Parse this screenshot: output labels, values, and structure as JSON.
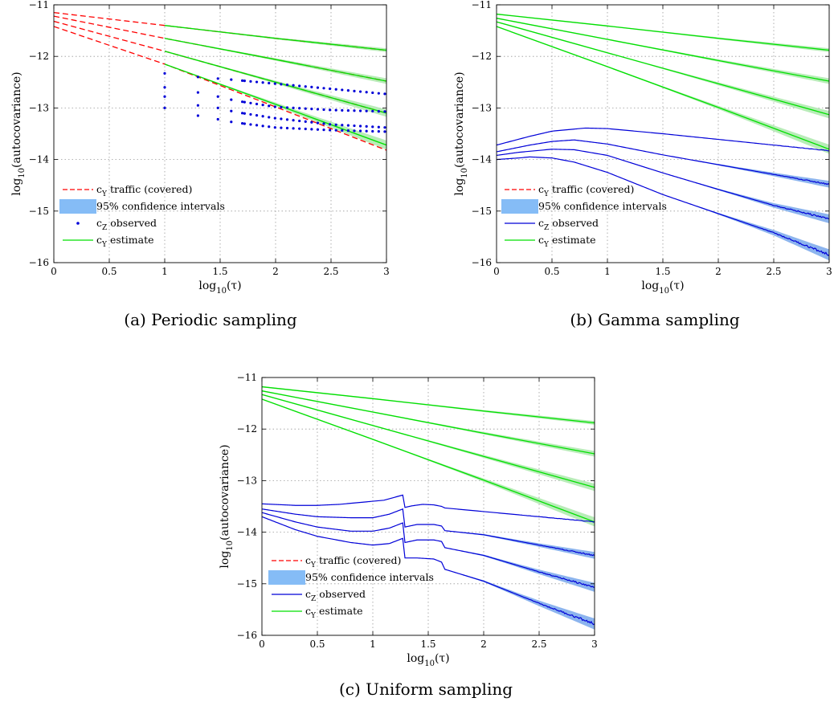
{
  "figure": {
    "legend": {
      "traffic": {
        "prefix": "c",
        "sub": "Y",
        "text": " traffic (covered)"
      },
      "ci": {
        "text": "95% confidence intervals"
      },
      "observed": {
        "prefix": "c",
        "sub": "Z",
        "text": " observed"
      },
      "estimate": {
        "prefix": "c",
        "sub": "Y",
        "text": " estimate"
      }
    },
    "colors": {
      "traffic": "#ff0000",
      "ci_fill": "#85bcf6",
      "observed": "#0000d8",
      "estimate": "#00e000",
      "estimate_band": "#b8ecb8",
      "observed_band": "#8cb4ee",
      "grid": "#9a9a9a"
    },
    "axis_labels": {
      "x": {
        "base": "log",
        "sub": "10",
        "rest": "(τ)"
      },
      "y": {
        "base": "log",
        "sub": "10",
        "rest": "(autocovariance)"
      }
    }
  },
  "chart_data": [
    {
      "id": "a",
      "type": "line",
      "caption": "(a) Periodic sampling",
      "xlim": [
        0,
        3
      ],
      "ylim": [
        -16,
        -11
      ],
      "xticks": [
        "0",
        "0.5",
        "1",
        "1.5",
        "2",
        "2.5",
        "3"
      ],
      "yticks": [
        "−11",
        "−12",
        "−13",
        "−14",
        "−15",
        "−16"
      ],
      "grid": true,
      "legend_position": "lower-left",
      "observed_style": "dots",
      "traffic": [
        {
          "x": [
            0,
            1,
            2,
            3
          ],
          "y": [
            -11.15,
            -11.4,
            -11.65,
            -11.88
          ]
        },
        {
          "x": [
            0,
            1,
            2,
            3
          ],
          "y": [
            -11.22,
            -11.65,
            -12.06,
            -12.48
          ]
        },
        {
          "x": [
            0,
            1,
            2,
            3
          ],
          "y": [
            -11.32,
            -11.9,
            -12.5,
            -13.1
          ]
        },
        {
          "x": [
            0,
            1,
            2,
            3
          ],
          "y": [
            -11.42,
            -12.15,
            -12.98,
            -13.82
          ]
        }
      ],
      "estimate": [
        {
          "x": [
            1,
            2,
            3
          ],
          "y": [
            -11.4,
            -11.65,
            -11.88
          ]
        },
        {
          "x": [
            1,
            2,
            3
          ],
          "y": [
            -11.65,
            -12.06,
            -12.48
          ]
        },
        {
          "x": [
            1,
            2,
            3
          ],
          "y": [
            -11.9,
            -12.5,
            -13.1
          ]
        },
        {
          "x": [
            1,
            2,
            3
          ],
          "y": [
            -12.15,
            -12.93,
            -13.72
          ]
        }
      ],
      "observed": [
        {
          "x": [
            1,
            1.3,
            1.48,
            1.6,
            1.7,
            2,
            2.5,
            3
          ],
          "y": [
            -12.33,
            -12.4,
            -12.43,
            -12.45,
            -12.47,
            -12.53,
            -12.63,
            -12.73
          ]
        },
        {
          "x": [
            1,
            1.3,
            1.48,
            1.6,
            1.7,
            2,
            2.5,
            3
          ],
          "y": [
            -12.6,
            -12.7,
            -12.78,
            -12.84,
            -12.88,
            -12.98,
            -13.04,
            -13.07
          ]
        },
        {
          "x": [
            1,
            1.3,
            1.48,
            1.6,
            1.7,
            2,
            2.5,
            3
          ],
          "y": [
            -12.78,
            -12.95,
            -13.0,
            -13.06,
            -13.1,
            -13.2,
            -13.32,
            -13.38
          ]
        },
        {
          "x": [
            1,
            1.3,
            1.48,
            1.6,
            1.7,
            2,
            2.5,
            3
          ],
          "y": [
            -13.0,
            -13.15,
            -13.22,
            -13.27,
            -13.3,
            -13.38,
            -13.43,
            -13.46
          ]
        }
      ]
    },
    {
      "id": "b",
      "type": "line",
      "caption": "(b) Gamma sampling",
      "xlim": [
        0,
        3
      ],
      "ylim": [
        -16,
        -11
      ],
      "xticks": [
        "0",
        "0.5",
        "1",
        "1.5",
        "2",
        "2.5",
        "3"
      ],
      "yticks": [
        "−11",
        "−12",
        "−13",
        "−14",
        "−15",
        "−16"
      ],
      "grid": true,
      "legend_position": "lower-left",
      "observed_style": "line",
      "estimate": [
        {
          "x": [
            0,
            1,
            2,
            3
          ],
          "y": [
            -11.18,
            -11.41,
            -11.65,
            -11.88
          ]
        },
        {
          "x": [
            0,
            1,
            2,
            3
          ],
          "y": [
            -11.26,
            -11.67,
            -12.08,
            -12.48
          ]
        },
        {
          "x": [
            0,
            1,
            2,
            3
          ],
          "y": [
            -11.33,
            -11.93,
            -12.53,
            -13.13
          ]
        },
        {
          "x": [
            0,
            1,
            2,
            3
          ],
          "y": [
            -11.42,
            -12.2,
            -12.99,
            -13.8
          ]
        }
      ],
      "observed": [
        {
          "x": [
            0,
            0.3,
            0.5,
            0.8,
            1,
            1.5,
            2,
            2.5,
            3
          ],
          "y": [
            -13.72,
            -13.55,
            -13.45,
            -13.39,
            -13.4,
            -13.5,
            -13.61,
            -13.72,
            -13.83
          ]
        },
        {
          "x": [
            0,
            0.3,
            0.5,
            0.7,
            1,
            1.5,
            2,
            2.5,
            3
          ],
          "y": [
            -13.85,
            -13.72,
            -13.65,
            -13.62,
            -13.7,
            -13.91,
            -14.1,
            -14.29,
            -14.48
          ]
        },
        {
          "x": [
            0,
            0.2,
            0.5,
            0.7,
            1,
            1.5,
            2,
            2.5,
            3
          ],
          "y": [
            -13.92,
            -13.86,
            -13.8,
            -13.81,
            -13.92,
            -14.26,
            -14.58,
            -14.89,
            -15.15
          ]
        },
        {
          "x": [
            0,
            0.2,
            0.3,
            0.5,
            0.7,
            1,
            1.5,
            2,
            2.5,
            3
          ],
          "y": [
            -14.0,
            -13.97,
            -13.95,
            -13.97,
            -14.05,
            -14.25,
            -14.68,
            -15.05,
            -15.42,
            -15.85
          ]
        }
      ]
    },
    {
      "id": "c",
      "type": "line",
      "caption": "(c) Uniform sampling",
      "xlim": [
        0,
        3
      ],
      "ylim": [
        -16,
        -11
      ],
      "xticks": [
        "0",
        "0.5",
        "1",
        "1.5",
        "2",
        "2.5",
        "3"
      ],
      "yticks": [
        "−11",
        "−12",
        "−13",
        "−14",
        "−15",
        "−16"
      ],
      "grid": true,
      "legend_position": "lower-left",
      "observed_style": "line",
      "estimate": [
        {
          "x": [
            0,
            1,
            2,
            3
          ],
          "y": [
            -11.18,
            -11.41,
            -11.65,
            -11.88
          ]
        },
        {
          "x": [
            0,
            1,
            2,
            3
          ],
          "y": [
            -11.26,
            -11.67,
            -12.08,
            -12.48
          ]
        },
        {
          "x": [
            0,
            1,
            2,
            3
          ],
          "y": [
            -11.33,
            -11.93,
            -12.53,
            -13.13
          ]
        },
        {
          "x": [
            0,
            1,
            2,
            3
          ],
          "y": [
            -11.42,
            -12.2,
            -12.99,
            -13.8
          ]
        }
      ],
      "observed": [
        {
          "x": [
            0,
            0.3,
            0.5,
            0.7,
            0.9,
            1.1,
            1.27,
            1.29,
            1.35,
            1.45,
            1.55,
            1.62,
            1.65,
            2,
            2.5,
            3
          ],
          "y": [
            -13.45,
            -13.48,
            -13.48,
            -13.46,
            -13.42,
            -13.38,
            -13.28,
            -13.52,
            -13.49,
            -13.46,
            -13.47,
            -13.5,
            -13.53,
            -13.6,
            -13.7,
            -13.8
          ]
        },
        {
          "x": [
            0,
            0.3,
            0.5,
            0.8,
            1,
            1.15,
            1.27,
            1.29,
            1.4,
            1.55,
            1.62,
            1.65,
            2,
            2.5,
            3
          ],
          "y": [
            -13.55,
            -13.65,
            -13.7,
            -13.72,
            -13.72,
            -13.65,
            -13.55,
            -13.9,
            -13.85,
            -13.85,
            -13.88,
            -13.97,
            -14.05,
            -14.25,
            -14.45
          ]
        },
        {
          "x": [
            0,
            0.3,
            0.5,
            0.8,
            1,
            1.15,
            1.27,
            1.29,
            1.4,
            1.55,
            1.62,
            1.65,
            2,
            2.5,
            3
          ],
          "y": [
            -13.62,
            -13.8,
            -13.9,
            -13.98,
            -13.98,
            -13.92,
            -13.82,
            -14.2,
            -14.15,
            -14.15,
            -14.18,
            -14.3,
            -14.45,
            -14.77,
            -15.07
          ]
        },
        {
          "x": [
            0,
            0.3,
            0.5,
            0.8,
            1,
            1.15,
            1.27,
            1.29,
            1.4,
            1.55,
            1.62,
            1.65,
            2,
            2.5,
            3
          ],
          "y": [
            -13.7,
            -13.95,
            -14.08,
            -14.2,
            -14.25,
            -14.22,
            -14.12,
            -14.5,
            -14.5,
            -14.52,
            -14.58,
            -14.72,
            -14.95,
            -15.38,
            -15.78
          ]
        }
      ]
    }
  ]
}
